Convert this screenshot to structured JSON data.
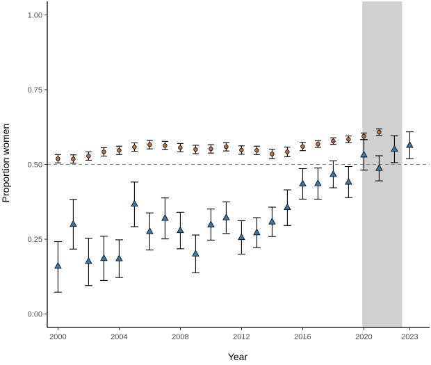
{
  "chart_data": {
    "type": "scatter",
    "xlabel": "Year",
    "ylabel": "Proportion women",
    "xlim": [
      1999.3,
      2024.3
    ],
    "ylim": [
      -0.045,
      1.045
    ],
    "x_ticks": [
      2000,
      2004,
      2008,
      2012,
      2016,
      2020,
      2023
    ],
    "x_tick_labels": [
      "2000",
      "2004",
      "2008",
      "2012",
      "2016",
      "2020",
      "2023"
    ],
    "y_ticks": [
      0,
      0.25,
      0.5,
      0.75,
      1.0
    ],
    "y_tick_labels": [
      "0.00",
      "0.25",
      "0.50",
      "0.75",
      "1.00"
    ],
    "reference_line": 0.5,
    "shaded_region": [
      2019.9,
      2022.5
    ],
    "colors": {
      "series_circles": "#c8703b",
      "series_triangles": "#3b78a8",
      "shading": "#d0d0d0",
      "reference_line": "#7f7f7f"
    },
    "series": [
      {
        "name": "circles",
        "marker": "circle",
        "points": [
          {
            "x": 2000,
            "y": 0.519,
            "lo": 0.505,
            "hi": 0.533
          },
          {
            "x": 2001,
            "y": 0.518,
            "lo": 0.504,
            "hi": 0.532
          },
          {
            "x": 2002,
            "y": 0.528,
            "lo": 0.514,
            "hi": 0.542
          },
          {
            "x": 2003,
            "y": 0.542,
            "lo": 0.528,
            "hi": 0.556
          },
          {
            "x": 2004,
            "y": 0.547,
            "lo": 0.533,
            "hi": 0.561
          },
          {
            "x": 2005,
            "y": 0.558,
            "lo": 0.544,
            "hi": 0.572
          },
          {
            "x": 2006,
            "y": 0.566,
            "lo": 0.552,
            "hi": 0.58
          },
          {
            "x": 2007,
            "y": 0.563,
            "lo": 0.549,
            "hi": 0.577
          },
          {
            "x": 2008,
            "y": 0.556,
            "lo": 0.542,
            "hi": 0.57
          },
          {
            "x": 2009,
            "y": 0.55,
            "lo": 0.536,
            "hi": 0.564
          },
          {
            "x": 2010,
            "y": 0.552,
            "lo": 0.538,
            "hi": 0.566
          },
          {
            "x": 2011,
            "y": 0.559,
            "lo": 0.545,
            "hi": 0.573
          },
          {
            "x": 2012,
            "y": 0.548,
            "lo": 0.534,
            "hi": 0.562
          },
          {
            "x": 2013,
            "y": 0.547,
            "lo": 0.533,
            "hi": 0.561
          },
          {
            "x": 2014,
            "y": 0.535,
            "lo": 0.519,
            "hi": 0.551
          },
          {
            "x": 2015,
            "y": 0.542,
            "lo": 0.526,
            "hi": 0.558
          },
          {
            "x": 2016,
            "y": 0.56,
            "lo": 0.546,
            "hi": 0.574
          },
          {
            "x": 2017,
            "y": 0.568,
            "lo": 0.557,
            "hi": 0.579
          },
          {
            "x": 2018,
            "y": 0.578,
            "lo": 0.567,
            "hi": 0.589
          },
          {
            "x": 2019,
            "y": 0.584,
            "lo": 0.573,
            "hi": 0.595
          },
          {
            "x": 2020,
            "y": 0.594,
            "lo": 0.583,
            "hi": 0.605
          },
          {
            "x": 2021,
            "y": 0.608,
            "lo": 0.597,
            "hi": 0.619
          }
        ]
      },
      {
        "name": "triangles",
        "marker": "triangle",
        "points": [
          {
            "x": 2000,
            "y": 0.16,
            "lo": 0.073,
            "hi": 0.242
          },
          {
            "x": 2001,
            "y": 0.3,
            "lo": 0.217,
            "hi": 0.383
          },
          {
            "x": 2002,
            "y": 0.176,
            "lo": 0.095,
            "hi": 0.253
          },
          {
            "x": 2003,
            "y": 0.186,
            "lo": 0.112,
            "hi": 0.26
          },
          {
            "x": 2004,
            "y": 0.185,
            "lo": 0.122,
            "hi": 0.248
          },
          {
            "x": 2005,
            "y": 0.368,
            "lo": 0.292,
            "hi": 0.441
          },
          {
            "x": 2006,
            "y": 0.276,
            "lo": 0.214,
            "hi": 0.338
          },
          {
            "x": 2007,
            "y": 0.32,
            "lo": 0.251,
            "hi": 0.388
          },
          {
            "x": 2008,
            "y": 0.279,
            "lo": 0.218,
            "hi": 0.34
          },
          {
            "x": 2009,
            "y": 0.201,
            "lo": 0.138,
            "hi": 0.264
          },
          {
            "x": 2010,
            "y": 0.298,
            "lo": 0.247,
            "hi": 0.351
          },
          {
            "x": 2011,
            "y": 0.322,
            "lo": 0.269,
            "hi": 0.375
          },
          {
            "x": 2012,
            "y": 0.256,
            "lo": 0.2,
            "hi": 0.312
          },
          {
            "x": 2013,
            "y": 0.272,
            "lo": 0.222,
            "hi": 0.322
          },
          {
            "x": 2014,
            "y": 0.308,
            "lo": 0.259,
            "hi": 0.357
          },
          {
            "x": 2015,
            "y": 0.356,
            "lo": 0.296,
            "hi": 0.415
          },
          {
            "x": 2016,
            "y": 0.435,
            "lo": 0.384,
            "hi": 0.486
          },
          {
            "x": 2017,
            "y": 0.436,
            "lo": 0.384,
            "hi": 0.488
          },
          {
            "x": 2018,
            "y": 0.467,
            "lo": 0.422,
            "hi": 0.512
          },
          {
            "x": 2019,
            "y": 0.441,
            "lo": 0.389,
            "hi": 0.493
          },
          {
            "x": 2020,
            "y": 0.532,
            "lo": 0.481,
            "hi": 0.583
          },
          {
            "x": 2021,
            "y": 0.487,
            "lo": 0.445,
            "hi": 0.529
          },
          {
            "x": 2022,
            "y": 0.551,
            "lo": 0.506,
            "hi": 0.596
          },
          {
            "x": 2023,
            "y": 0.564,
            "lo": 0.519,
            "hi": 0.609
          }
        ]
      }
    ]
  }
}
